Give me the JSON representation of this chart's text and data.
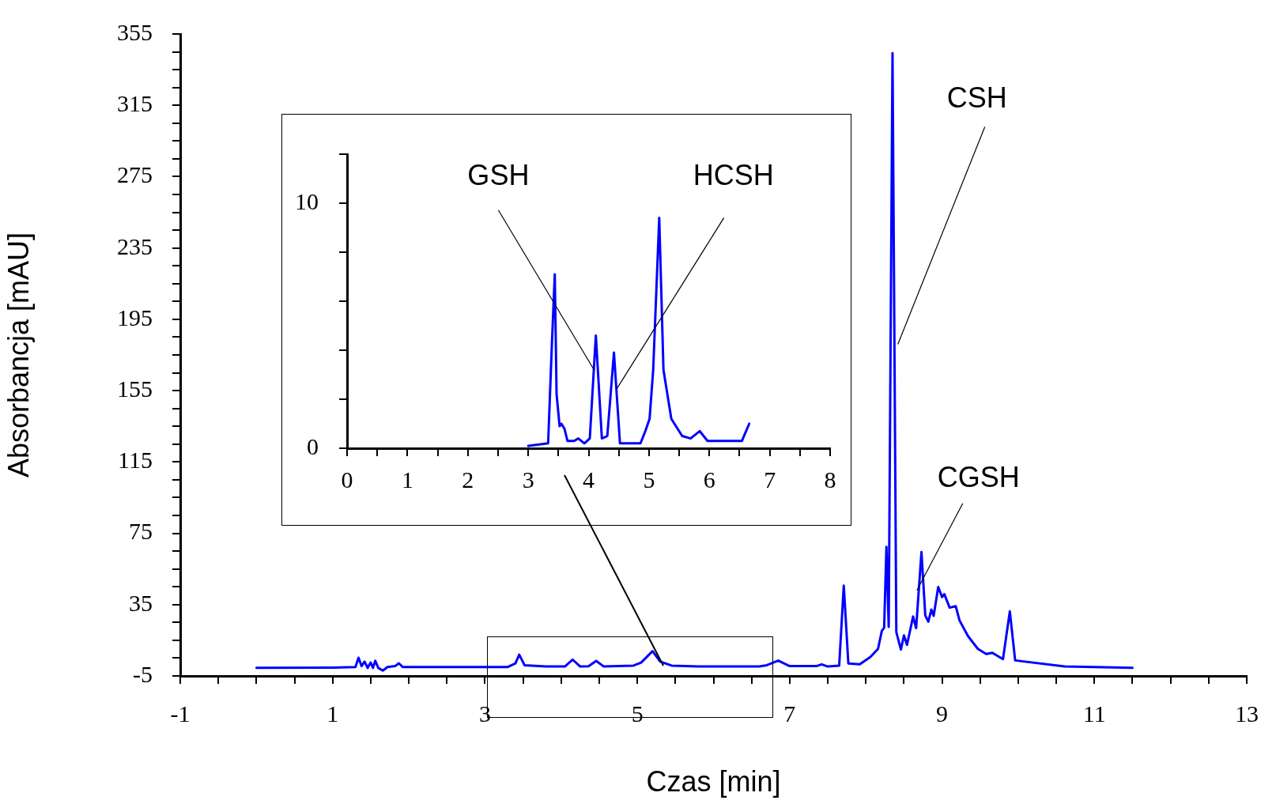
{
  "chart_data": [
    {
      "type": "line",
      "xlabel": "Czas [min]",
      "ylabel": "Absorbancja [mAU]",
      "x": [
        0,
        1.0,
        1.3,
        1.34,
        1.38,
        1.42,
        1.46,
        1.5,
        1.53,
        1.56,
        1.6,
        1.66,
        1.72,
        1.82,
        1.87,
        1.92,
        2.5,
        3.3,
        3.4,
        3.45,
        3.52,
        3.8,
        4.05,
        4.15,
        4.25,
        4.36,
        4.46,
        4.56,
        4.95,
        5.05,
        5.2,
        5.3,
        5.45,
        5.8,
        6.6,
        6.7,
        6.85,
        7.0,
        7.35,
        7.42,
        7.5,
        7.65,
        7.71,
        7.77,
        7.92,
        8.06,
        8.16,
        8.21,
        8.24,
        8.27,
        8.3,
        8.35,
        8.4,
        8.46,
        8.5,
        8.54,
        8.62,
        8.66,
        8.73,
        8.78,
        8.82,
        8.86,
        8.89,
        8.95,
        9.0,
        9.03,
        9.1,
        9.18,
        9.23,
        9.34,
        9.47,
        9.58,
        9.66,
        9.8,
        9.89,
        9.96,
        10.61,
        11.5
      ],
      "series": [
        {
          "color": "#0000ff",
          "values": [
            -0.5,
            -0.3,
            0,
            5.2,
            0.5,
            3,
            -0.5,
            2.5,
            -0.5,
            3.5,
            -0.5,
            -2,
            0,
            0.5,
            2.1,
            0,
            0,
            0,
            2,
            6.9,
            1,
            0.3,
            0.3,
            4.2,
            0.3,
            0.4,
            3.4,
            0.3,
            0.8,
            2.5,
            8.9,
            3,
            0.8,
            0.3,
            0.3,
            1,
            3.6,
            0.5,
            0.5,
            1.5,
            0.3,
            0.8,
            45.7,
            2,
            1.5,
            5.6,
            10.2,
            20.3,
            22,
            67.4,
            22.5,
            344.3,
            19.6,
            9.8,
            17.7,
            12.4,
            28.3,
            21.8,
            64.5,
            29,
            25.4,
            32.2,
            28.7,
            44.9,
            39.2,
            40.9,
            33.3,
            34.1,
            26.1,
            17.4,
            10.2,
            7.3,
            8.0,
            4.4,
            31.2,
            3.7,
            0.3,
            -0.5
          ]
        }
      ],
      "xlim": [
        -1,
        13
      ],
      "ylim": [
        -5,
        355
      ],
      "xticks": [
        -1,
        {
          "value": -0.5,
          "label": null
        },
        {
          "value": 0,
          "label": null
        },
        {
          "value": 0.5,
          "label": null
        },
        1,
        {
          "value": 1.5,
          "label": null
        },
        {
          "value": 2,
          "label": null
        },
        {
          "value": 2.5,
          "label": null
        },
        3,
        {
          "value": 3.5,
          "label": null
        },
        {
          "value": 4,
          "label": null
        },
        {
          "value": 4.5,
          "label": null
        },
        5,
        {
          "value": 5.5,
          "label": null
        },
        {
          "value": 6,
          "label": null
        },
        {
          "value": 6.5,
          "label": null
        },
        7,
        {
          "value": 7.5,
          "label": null
        },
        {
          "value": 8,
          "label": null
        },
        {
          "value": 8.5,
          "label": null
        },
        9,
        {
          "value": 9.5,
          "label": null
        },
        {
          "value": 10,
          "label": null
        },
        {
          "value": 10.5,
          "label": null
        },
        11,
        {
          "value": 11.5,
          "label": null
        },
        {
          "value": 12,
          "label": null
        },
        {
          "value": 12.5,
          "label": null
        },
        13
      ],
      "yticks": [
        -5,
        {
          "value": 5,
          "label": null
        },
        {
          "value": 15,
          "label": null
        },
        {
          "value": 25,
          "label": null
        },
        35,
        {
          "value": 45,
          "label": null
        },
        {
          "value": 55,
          "label": null
        },
        {
          "value": 65,
          "label": null
        },
        75,
        {
          "value": 85,
          "label": null
        },
        {
          "value": 95,
          "label": null
        },
        {
          "value": 105,
          "label": null
        },
        115,
        {
          "value": 125,
          "label": null
        },
        {
          "value": 135,
          "label": null
        },
        {
          "value": 145,
          "label": null
        },
        155,
        {
          "value": 165,
          "label": null
        },
        {
          "value": 175,
          "label": null
        },
        {
          "value": 185,
          "label": null
        },
        195,
        {
          "value": 205,
          "label": null
        },
        {
          "value": 215,
          "label": null
        },
        {
          "value": 225,
          "label": null
        },
        235,
        {
          "value": 245,
          "label": null
        },
        {
          "value": 255,
          "label": null
        },
        {
          "value": 265,
          "label": null
        },
        275,
        {
          "value": 285,
          "label": null
        },
        {
          "value": 295,
          "label": null
        },
        {
          "value": 305,
          "label": null
        },
        315,
        {
          "value": 325,
          "label": null
        },
        {
          "value": 335,
          "label": null
        },
        {
          "value": 345,
          "label": null
        },
        355
      ],
      "annotations": [
        {
          "text": "CSH",
          "x": 8.42,
          "y": 181
        },
        {
          "text": "CGSH",
          "x": 8.67,
          "y": 43
        }
      ],
      "grid": false,
      "legend": false,
      "marker": "none"
    },
    {
      "type": "line",
      "x": [
        3.0,
        3.33,
        3.39,
        3.44,
        3.47,
        3.52,
        3.55,
        3.6,
        3.65,
        3.76,
        3.83,
        3.93,
        4.02,
        4.12,
        4.22,
        4.31,
        4.42,
        4.52,
        4.86,
        4.94,
        5.01,
        5.07,
        5.17,
        5.24,
        5.37,
        5.55,
        5.69,
        5.84,
        5.97,
        6.3,
        6.54,
        6.66
      ],
      "series": [
        {
          "color": "#0000ff",
          "values": [
            0.1,
            0.2,
            4.1,
            7.1,
            2.2,
            0.9,
            1.0,
            0.8,
            0.3,
            0.3,
            0.4,
            0.2,
            0.4,
            4.6,
            0.4,
            0.5,
            3.9,
            0.2,
            0.2,
            0.7,
            1.2,
            3.2,
            9.4,
            3.2,
            1.2,
            0.5,
            0.4,
            0.7,
            0.3,
            0.3,
            0.3,
            1.0
          ]
        }
      ],
      "xlim": [
        0,
        8
      ],
      "ylim": [
        0,
        12
      ],
      "xticks": [
        0,
        {
          "value": 0.5,
          "label": null
        },
        1,
        {
          "value": 1.5,
          "label": null
        },
        2,
        {
          "value": 2.5,
          "label": null
        },
        3,
        {
          "value": 3.5,
          "label": null
        },
        4,
        {
          "value": 4.5,
          "label": null
        },
        5,
        {
          "value": 5.5,
          "label": null
        },
        6,
        {
          "value": 6.5,
          "label": null
        },
        7,
        {
          "value": 7.5,
          "label": null
        },
        8
      ],
      "yticks": [
        0,
        {
          "value": 2,
          "label": null
        },
        {
          "value": 4,
          "label": null
        },
        {
          "value": 6,
          "label": null
        },
        {
          "value": 8,
          "label": null
        },
        10,
        {
          "value": 12,
          "label": null
        }
      ],
      "annotations": [
        {
          "text": "GSH",
          "x": 4.09,
          "y": 3.2
        },
        {
          "text": "HCSH",
          "x": 4.46,
          "y": 2.4
        }
      ],
      "grid": false,
      "legend": false,
      "marker": "none"
    }
  ]
}
